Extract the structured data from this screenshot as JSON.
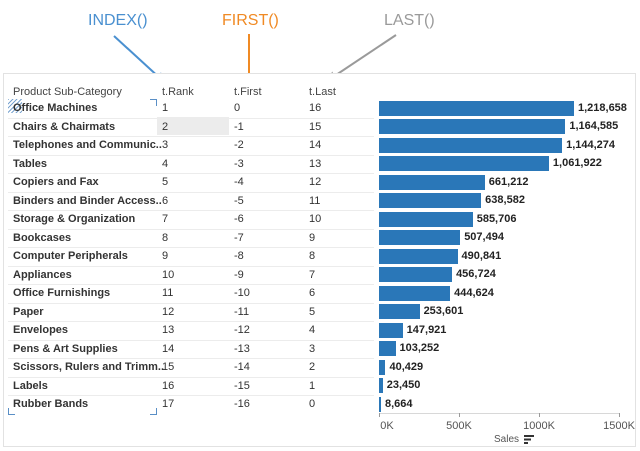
{
  "annotations": [
    {
      "label": "INDEX()",
      "color": "#4a90d0"
    },
    {
      "label": "FIRST()",
      "color": "#f08a24"
    },
    {
      "label": "LAST()",
      "color": "#9a9a9a"
    }
  ],
  "table": {
    "headers": {
      "category": "Product Sub-Category",
      "rank": "t.Rank",
      "first": "t.First",
      "last": "t.Last"
    },
    "rows": [
      {
        "category": "Office Machines",
        "rank": "1",
        "first": "0",
        "last": "16",
        "sales_label": "1,218,658"
      },
      {
        "category": "Chairs & Chairmats",
        "rank": "2",
        "first": "-1",
        "last": "15",
        "sales_label": "1,164,585"
      },
      {
        "category": "Telephones and Communic..",
        "rank": "3",
        "first": "-2",
        "last": "14",
        "sales_label": "1,144,274"
      },
      {
        "category": "Tables",
        "rank": "4",
        "first": "-3",
        "last": "13",
        "sales_label": "1,061,922"
      },
      {
        "category": "Copiers and Fax",
        "rank": "5",
        "first": "-4",
        "last": "12",
        "sales_label": "661,212"
      },
      {
        "category": "Binders and Binder Access..",
        "rank": "6",
        "first": "-5",
        "last": "11",
        "sales_label": "638,582"
      },
      {
        "category": "Storage & Organization",
        "rank": "7",
        "first": "-6",
        "last": "10",
        "sales_label": "585,706"
      },
      {
        "category": "Bookcases",
        "rank": "8",
        "first": "-7",
        "last": "9",
        "sales_label": "507,494"
      },
      {
        "category": "Computer Peripherals",
        "rank": "9",
        "first": "-8",
        "last": "8",
        "sales_label": "490,841"
      },
      {
        "category": "Appliances",
        "rank": "10",
        "first": "-9",
        "last": "7",
        "sales_label": "456,724"
      },
      {
        "category": "Office Furnishings",
        "rank": "11",
        "first": "-10",
        "last": "6",
        "sales_label": "444,624"
      },
      {
        "category": "Paper",
        "rank": "12",
        "first": "-11",
        "last": "5",
        "sales_label": "253,601"
      },
      {
        "category": "Envelopes",
        "rank": "13",
        "first": "-12",
        "last": "4",
        "sales_label": "147,921"
      },
      {
        "category": "Pens & Art Supplies",
        "rank": "14",
        "first": "-13",
        "last": "3",
        "sales_label": "103,252"
      },
      {
        "category": "Scissors, Rulers and Trimm..",
        "rank": "15",
        "first": "-14",
        "last": "2",
        "sales_label": "40,429"
      },
      {
        "category": "Labels",
        "rank": "16",
        "first": "-15",
        "last": "1",
        "sales_label": "23,450"
      },
      {
        "category": "Rubber Bands",
        "rank": "17",
        "first": "-16",
        "last": "0",
        "sales_label": "8,664"
      }
    ],
    "highlighted_cell": "rank-row-2"
  },
  "chart_data": {
    "type": "bar",
    "orientation": "horizontal",
    "categories": [
      "Office Machines",
      "Chairs & Chairmats",
      "Telephones and Communic..",
      "Tables",
      "Copiers and Fax",
      "Binders and Binder Access..",
      "Storage & Organization",
      "Bookcases",
      "Computer Peripherals",
      "Appliances",
      "Office Furnishings",
      "Paper",
      "Envelopes",
      "Pens & Art Supplies",
      "Scissors, Rulers and Trimm..",
      "Labels",
      "Rubber Bands"
    ],
    "values": [
      1218658,
      1164585,
      1144274,
      1061922,
      661212,
      638582,
      585706,
      507494,
      490841,
      456724,
      444624,
      253601,
      147921,
      103252,
      40429,
      23450,
      8664
    ],
    "xlabel": "Sales",
    "xlim": [
      0,
      1500000
    ],
    "ticks": [
      {
        "value": 0,
        "label": "0K"
      },
      {
        "value": 500000,
        "label": "500K"
      },
      {
        "value": 1000000,
        "label": "1000K"
      },
      {
        "value": 1500000,
        "label": "1500K"
      }
    ],
    "bar_color": "#2a77b8",
    "grid": false
  },
  "icons": {
    "sort": "sort-descending-icon"
  }
}
